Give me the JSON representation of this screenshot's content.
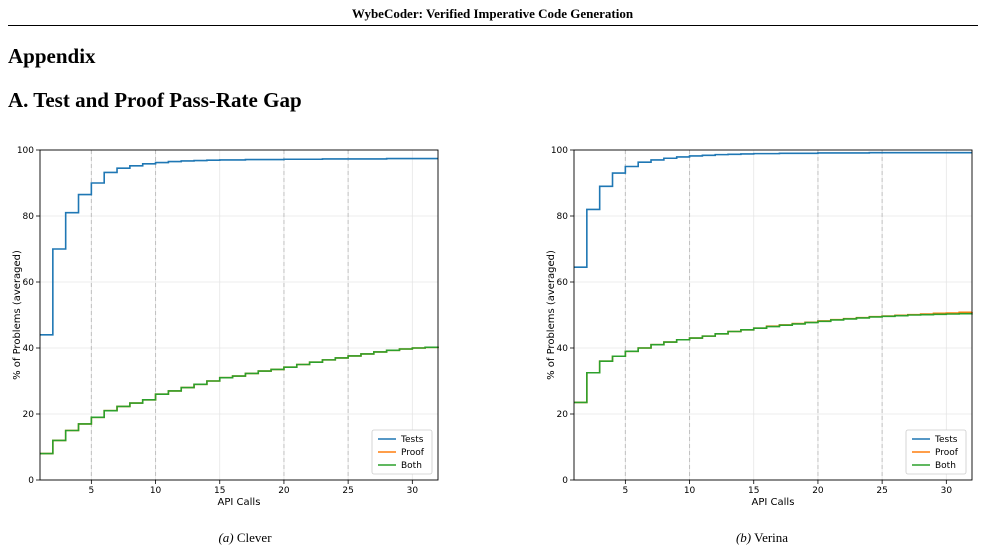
{
  "header": {
    "running_title": "WybeCoder: Verified Imperative Code Generation"
  },
  "appendix_title": "Appendix",
  "section_title": "A. Test and Proof Pass-Rate Gap",
  "figures": [
    {
      "tag": "(a)",
      "caption": "Clever"
    },
    {
      "tag": "(b)",
      "caption": "Verina"
    }
  ],
  "colors": {
    "tests": "#1f77b4",
    "proof": "#ff7f0e",
    "both": "#2ca02c",
    "grid": "#e6e6e6",
    "vline": "#c0c0c0"
  },
  "chart_data": [
    {
      "type": "line",
      "xlabel": "API Calls",
      "ylabel": "% of Problems (averaged)",
      "xlim": [
        1,
        32
      ],
      "ylim": [
        0,
        100
      ],
      "xticks": [
        5,
        10,
        15,
        20,
        25,
        30
      ],
      "yticks": [
        0,
        20,
        40,
        60,
        80,
        100
      ],
      "vlines": [
        5,
        10,
        20,
        25
      ],
      "legend_position": "lower-right",
      "x": [
        1,
        2,
        3,
        4,
        5,
        6,
        7,
        8,
        9,
        10,
        11,
        12,
        13,
        14,
        15,
        16,
        17,
        18,
        19,
        20,
        21,
        22,
        23,
        24,
        25,
        26,
        27,
        28,
        29,
        30,
        31,
        32
      ],
      "series": [
        {
          "name": "Tests",
          "values": [
            44,
            70,
            81,
            86.5,
            90,
            93.2,
            94.5,
            95.2,
            95.8,
            96.2,
            96.5,
            96.7,
            96.8,
            96.9,
            97.0,
            97.0,
            97.1,
            97.1,
            97.1,
            97.2,
            97.2,
            97.2,
            97.3,
            97.3,
            97.3,
            97.3,
            97.3,
            97.4,
            97.4,
            97.4,
            97.4,
            97.4
          ]
        },
        {
          "name": "Proof",
          "values": [
            8,
            12,
            15,
            17,
            19,
            21,
            22.3,
            23.3,
            24.3,
            26,
            27,
            28,
            29,
            30,
            31,
            31.5,
            32.3,
            33,
            33.5,
            34.2,
            35,
            35.7,
            36.4,
            37,
            37.6,
            38.2,
            38.8,
            39.3,
            39.7,
            40,
            40.2,
            40.4
          ]
        },
        {
          "name": "Both",
          "values": [
            8,
            12,
            15,
            17,
            19,
            21,
            22.3,
            23.3,
            24.3,
            26,
            27,
            28,
            29,
            30,
            31,
            31.5,
            32.3,
            33,
            33.5,
            34.2,
            35,
            35.7,
            36.4,
            37,
            37.6,
            38.2,
            38.8,
            39.3,
            39.7,
            40,
            40.2,
            40.4
          ]
        }
      ]
    },
    {
      "type": "line",
      "xlabel": "API Calls",
      "ylabel": "% of Problems (averaged)",
      "xlim": [
        1,
        32
      ],
      "ylim": [
        0,
        100
      ],
      "xticks": [
        5,
        10,
        15,
        20,
        25,
        30
      ],
      "yticks": [
        0,
        20,
        40,
        60,
        80,
        100
      ],
      "vlines": [
        5,
        10,
        20,
        25
      ],
      "legend_position": "lower-right",
      "x": [
        1,
        2,
        3,
        4,
        5,
        6,
        7,
        8,
        9,
        10,
        11,
        12,
        13,
        14,
        15,
        16,
        17,
        18,
        19,
        20,
        21,
        22,
        23,
        24,
        25,
        26,
        27,
        28,
        29,
        30,
        31,
        32
      ],
      "series": [
        {
          "name": "Tests",
          "values": [
            64.5,
            82,
            89,
            93,
            95,
            96.3,
            97,
            97.5,
            97.9,
            98.2,
            98.4,
            98.6,
            98.7,
            98.8,
            98.9,
            98.9,
            99,
            99,
            99,
            99.1,
            99.1,
            99.1,
            99.1,
            99.2,
            99.2,
            99.2,
            99.2,
            99.2,
            99.2,
            99.2,
            99.2,
            99.2
          ]
        },
        {
          "name": "Proof",
          "values": [
            23.5,
            32.5,
            36,
            37.5,
            39,
            40,
            41,
            41.8,
            42.5,
            43,
            43.6,
            44.3,
            45,
            45.5,
            46,
            46.6,
            47,
            47.4,
            47.8,
            48.2,
            48.6,
            48.9,
            49.2,
            49.5,
            49.7,
            49.9,
            50.1,
            50.3,
            50.5,
            50.6,
            50.8,
            50.9
          ]
        },
        {
          "name": "Both",
          "values": [
            23.5,
            32.5,
            36,
            37.5,
            39,
            40,
            41,
            41.8,
            42.5,
            43,
            43.6,
            44.3,
            45,
            45.5,
            46,
            46.5,
            46.9,
            47.3,
            47.7,
            48.1,
            48.5,
            48.8,
            49.1,
            49.4,
            49.6,
            49.8,
            50,
            50.1,
            50.2,
            50.3,
            50.4,
            50.5
          ]
        }
      ]
    }
  ]
}
